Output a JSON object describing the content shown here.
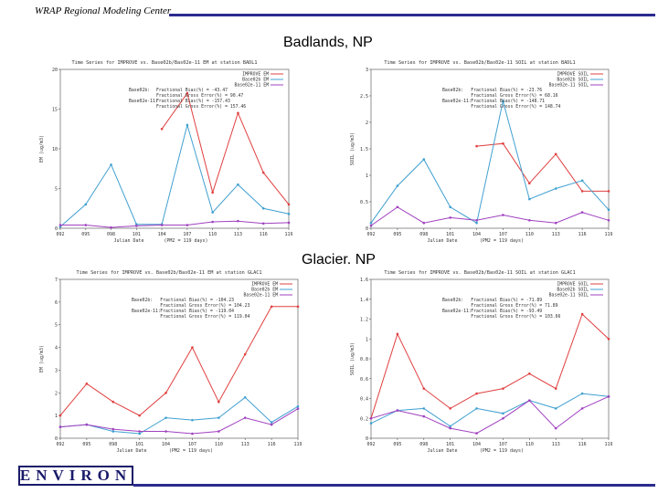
{
  "header": {
    "org": "WRAP Regional Modeling Center"
  },
  "titles": {
    "top": "Badlands, NP",
    "bottom": "Glacier. NP"
  },
  "logo": {
    "text": "ENVIRON"
  },
  "colors": {
    "observed": "#e04040",
    "base02b": "#40a0d0",
    "base02e": "#a040c0",
    "bar": "#2b2b8f"
  },
  "chart_data": [
    {
      "type": "line",
      "title": "Time Series for IMPROVE vs. Base02b/Bas02e-11 EM at station BADL1",
      "ylabel": "EM (ug/m3)",
      "xlabel": "Julian Date",
      "footer": "(PM2 = 119 days)",
      "x": [
        "092",
        "095",
        "098",
        "101",
        "104",
        "107",
        "110",
        "113",
        "116",
        "119"
      ],
      "ylim": [
        0,
        20
      ],
      "yticks": [
        0,
        5,
        10,
        15,
        20
      ],
      "series": [
        {
          "name": "IMPROVE EM",
          "values": [
            null,
            null,
            null,
            null,
            12.5,
            17,
            4.5,
            14.5,
            7,
            3
          ]
        },
        {
          "name": "Base02b EM",
          "values": [
            0.2,
            3,
            8,
            0.5,
            0.5,
            13,
            2,
            5.5,
            2.5,
            1.8
          ]
        },
        {
          "name": "Base02e-11 EM",
          "values": [
            0.4,
            0.4,
            0.1,
            0.3,
            0.4,
            0.4,
            0.8,
            0.9,
            0.6,
            0.7
          ]
        }
      ],
      "stats": [
        {
          "label": "Base02b:",
          "text": "Fractional Bias(%) = -43.47"
        },
        {
          "label": "",
          "text": "Fractional Gross Error(%) = 90.47"
        },
        {
          "label": "Base02e-11:",
          "text": "Fractional Bias(%) = -157.43"
        },
        {
          "label": "",
          "text": "Fractional Gross Error(%) = 157.46"
        }
      ]
    },
    {
      "type": "line",
      "title": "Time Series for IMPROVE vs. Base02b/Bas02e-11 SOIL at station BADL1",
      "ylabel": "SOIL (ug/m3)",
      "xlabel": "Julian Date",
      "footer": "(PM2 = 119 days)",
      "x": [
        "092",
        "095",
        "098",
        "101",
        "104",
        "107",
        "110",
        "113",
        "116",
        "119"
      ],
      "ylim": [
        0,
        3
      ],
      "yticks": [
        0,
        0.5,
        1,
        1.5,
        2,
        2.5,
        3
      ],
      "series": [
        {
          "name": "IMPROVE SOIL",
          "values": [
            null,
            null,
            null,
            null,
            1.55,
            1.6,
            0.85,
            1.4,
            0.7,
            0.7
          ]
        },
        {
          "name": "Base02b SOIL",
          "values": [
            0.1,
            0.8,
            1.3,
            0.4,
            0.1,
            2.4,
            0.55,
            0.75,
            0.9,
            0.35
          ]
        },
        {
          "name": "Base02e-11 SOIL",
          "values": [
            0.05,
            0.4,
            0.1,
            0.2,
            0.15,
            0.25,
            0.15,
            0.1,
            0.3,
            0.15
          ]
        }
      ],
      "stats": [
        {
          "label": "Base02b:",
          "text": "Fractional Bias(%) = -23.76"
        },
        {
          "label": "",
          "text": "Fractional Gross Error(%) = 68.16"
        },
        {
          "label": "Base02e-11:",
          "text": "Fractional Bias(%) = -148.71"
        },
        {
          "label": "",
          "text": "Fractional Gross Error(%) = 148.74"
        }
      ]
    },
    {
      "type": "line",
      "title": "Time Series for IMPROVE vs. Base02b/Bas02e-11 EM at station GLAC1",
      "ylabel": "EM (ug/m3)",
      "xlabel": "Julian Date",
      "footer": "(PM2 = 119 days)",
      "x": [
        "092",
        "095",
        "098",
        "101",
        "104",
        "107",
        "110",
        "113",
        "116",
        "119"
      ],
      "ylim": [
        0,
        7
      ],
      "yticks": [
        0,
        1,
        2,
        3,
        4,
        5,
        6,
        7
      ],
      "series": [
        {
          "name": "IMPROVE EM",
          "values": [
            1.0,
            2.4,
            1.6,
            1.0,
            2.0,
            4.0,
            1.6,
            3.7,
            5.8,
            5.8
          ]
        },
        {
          "name": "Base02b EM",
          "values": [
            0.5,
            0.6,
            0.3,
            0.2,
            0.9,
            0.8,
            0.9,
            1.8,
            0.7,
            1.4
          ]
        },
        {
          "name": "Base02e-11 EM",
          "values": [
            0.5,
            0.6,
            0.4,
            0.3,
            0.3,
            0.2,
            0.3,
            0.9,
            0.6,
            1.3
          ]
        }
      ],
      "stats": [
        {
          "label": "Base02b:",
          "text": "Fractional Bias(%) = -104.23"
        },
        {
          "label": "",
          "text": "Fractional Gross Error(%) = 104.23"
        },
        {
          "label": "Base02e-11:",
          "text": "Fractional Bias(%) = -119.04"
        },
        {
          "label": "",
          "text": "Fractional Gross Error(%) = 119.04"
        }
      ]
    },
    {
      "type": "line",
      "title": "Time Series for IMPROVE vs. Base02b/Bas02e-11 SOIL at station GLAC1",
      "ylabel": "SOIL (ug/m3)",
      "xlabel": "Julian Date",
      "footer": "(PM2 = 119 days)",
      "x": [
        "092",
        "095",
        "098",
        "101",
        "104",
        "107",
        "110",
        "113",
        "116",
        "119"
      ],
      "ylim": [
        0,
        1.6
      ],
      "yticks": [
        0,
        0.2,
        0.4,
        0.6,
        0.8,
        1,
        1.2,
        1.4,
        1.6
      ],
      "series": [
        {
          "name": "IMPROVE SOIL",
          "values": [
            0.2,
            1.05,
            0.5,
            0.3,
            0.45,
            0.5,
            0.65,
            0.5,
            1.25,
            1.0
          ]
        },
        {
          "name": "Base02b SOIL",
          "values": [
            0.15,
            0.28,
            0.3,
            0.12,
            0.3,
            0.25,
            0.38,
            0.3,
            0.45,
            0.42
          ]
        },
        {
          "name": "Base02e-11 SOIL",
          "values": [
            0.2,
            0.28,
            0.22,
            0.1,
            0.05,
            0.2,
            0.38,
            0.1,
            0.3,
            0.42
          ]
        }
      ],
      "stats": [
        {
          "label": "Base02b:",
          "text": "Fractional Bias(%) = -71.89"
        },
        {
          "label": "",
          "text": "Fractional Gross Error(%) = 71.89"
        },
        {
          "label": "Base02e-11:",
          "text": "Fractional Bias(%) = -93.49"
        },
        {
          "label": "",
          "text": "Fractional Gross Error(%) = 103.66"
        }
      ]
    }
  ]
}
